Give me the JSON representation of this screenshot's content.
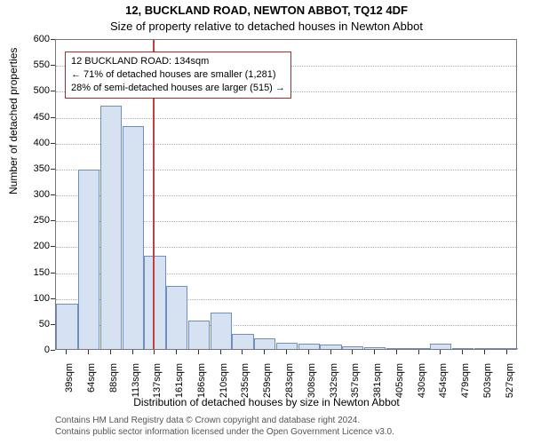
{
  "title_line1": "12, BUCKLAND ROAD, NEWTON ABBOT, TQ12 4DF",
  "title_line2": "Size of property relative to detached houses in Newton Abbot",
  "ylabel": "Number of detached properties",
  "xlabel": "Distribution of detached houses by size in Newton Abbot",
  "chart": {
    "type": "histogram",
    "ylim": [
      0,
      600
    ],
    "ytick_step": 50,
    "bar_fill": "#d6e2f2",
    "bar_stroke": "#6d8fbf",
    "ref_line_color": "#c04040",
    "ref_line_x_index": 3.9,
    "grid_color": "#b0b0b0",
    "border_color": "#777777",
    "background_color": "#ffffff",
    "x_labels": [
      "39sqm",
      "64sqm",
      "88sqm",
      "113sqm",
      "137sqm",
      "161sqm",
      "186sqm",
      "210sqm",
      "235sqm",
      "259sqm",
      "283sqm",
      "308sqm",
      "332sqm",
      "357sqm",
      "381sqm",
      "405sqm",
      "430sqm",
      "454sqm",
      "479sqm",
      "503sqm",
      "527sqm"
    ],
    "values": [
      88,
      347,
      470,
      430,
      180,
      122,
      55,
      70,
      30,
      20,
      12,
      10,
      8,
      5,
      3,
      2,
      2,
      10,
      1,
      1,
      1
    ]
  },
  "infobox": {
    "border_color": "#a03030",
    "line1": "12 BUCKLAND ROAD: 134sqm",
    "line2": "← 71% of detached houses are smaller (1,281)",
    "line3": "28% of semi-detached houses are larger (515) →"
  },
  "footnote": {
    "line1": "Contains HM Land Registry data © Crown copyright and database right 2024.",
    "line2": "Contains public sector information licensed under the Open Government Licence v3.0."
  }
}
